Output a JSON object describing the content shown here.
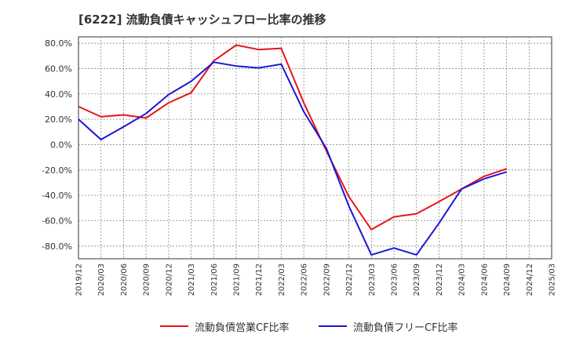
{
  "title": "[6222]  流動負債キャッシュフロー比率の推移",
  "chart_data": {
    "type": "line",
    "title": "[6222]  流動負債キャッシュフロー比率の推移",
    "x_labels": [
      "2019/12",
      "2020/03",
      "2020/06",
      "2020/09",
      "2020/12",
      "2021/03",
      "2021/06",
      "2021/09",
      "2021/12",
      "2022/03",
      "2022/06",
      "2022/09",
      "2022/12",
      "2023/03",
      "2023/06",
      "2023/09",
      "2023/12",
      "2024/03",
      "2024/06",
      "2024/09",
      "2024/12",
      "2025/03"
    ],
    "y_ticks": [
      "80.0%",
      "60.0%",
      "40.0%",
      "20.0%",
      "0.0%",
      "-20.0%",
      "-40.0%",
      "-60.0%",
      "-80.0%"
    ],
    "y_tick_values": [
      80,
      60,
      40,
      20,
      0,
      -20,
      -40,
      -60,
      -80
    ],
    "ylim": [
      -90,
      85
    ],
    "grid": true,
    "legend_position": "bottom",
    "series": [
      {
        "name": "流動負債営業CF比率",
        "color": "#e8141b",
        "values": [
          30.0,
          22.0,
          23.5,
          21.0,
          33.0,
          41.0,
          66.0,
          78.5,
          75.0,
          76.0,
          33.0,
          -5.0,
          -41.0,
          -67.0,
          -57.0,
          -54.5,
          -45.0,
          -35.0,
          -25.0,
          -19.0,
          null,
          null
        ]
      },
      {
        "name": "流動負債フリーCF比率",
        "color": "#1a17d8",
        "values": [
          20.0,
          4.0,
          14.0,
          24.5,
          39.5,
          50.0,
          65.0,
          62.0,
          60.5,
          63.5,
          26.0,
          -3.0,
          -48.5,
          -87.0,
          -81.5,
          -87.0,
          -62.0,
          -35.0,
          -27.0,
          -21.5,
          null,
          null
        ]
      }
    ]
  }
}
